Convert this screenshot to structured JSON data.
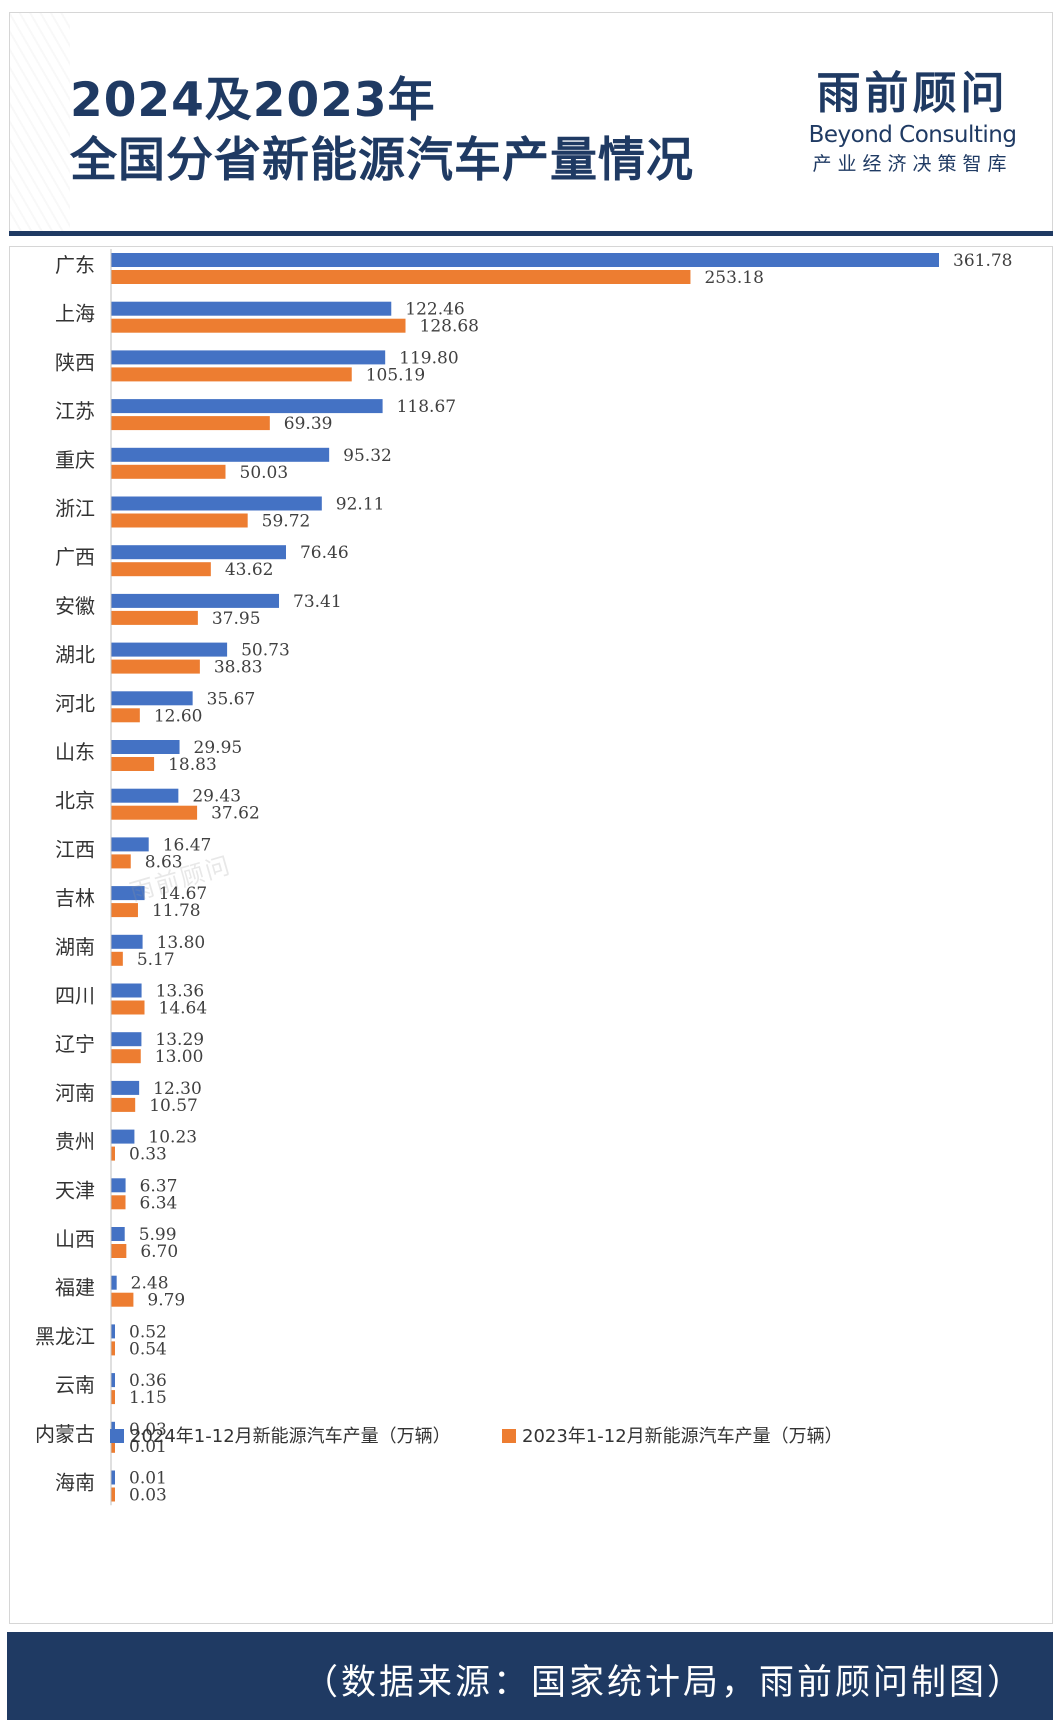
{
  "header": {
    "title_line1": "2024及2023年",
    "title_line2": "全国分省新能源汽车产量情况",
    "logo_cn": "雨前顾问",
    "logo_en": "Beyond Consulting",
    "logo_tagline": "产业经济决策智库"
  },
  "watermark": "雨前顾问",
  "footer": {
    "source": "（数据来源：国家统计局，雨前顾问制图）"
  },
  "colors": {
    "series_2024": "#4472c4",
    "series_2023": "#ed7d31",
    "navy": "#1f3a63"
  },
  "chart_data": {
    "type": "bar",
    "orientation": "horizontal",
    "title": "",
    "xlabel": "",
    "ylabel": "",
    "xlim": [
      0,
      361.78
    ],
    "grid": false,
    "legend_position": "bottom",
    "categories": [
      "广东",
      "上海",
      "陕西",
      "江苏",
      "重庆",
      "浙江",
      "广西",
      "安徽",
      "湖北",
      "河北",
      "山东",
      "北京",
      "江西",
      "吉林",
      "湖南",
      "四川",
      "辽宁",
      "河南",
      "贵州",
      "天津",
      "山西",
      "福建",
      "黑龙江",
      "云南",
      "内蒙古",
      "海南"
    ],
    "series": [
      {
        "name": "2024年1-12月新能源汽车产量（万辆）",
        "color": "#4472c4",
        "values": [
          361.78,
          122.46,
          119.8,
          118.67,
          95.32,
          92.11,
          76.46,
          73.41,
          50.73,
          35.67,
          29.95,
          29.43,
          16.47,
          14.67,
          13.8,
          13.36,
          13.29,
          12.3,
          10.23,
          6.37,
          5.99,
          2.48,
          0.52,
          0.36,
          0.03,
          0.01
        ],
        "labels": [
          "361.78",
          "122.46",
          "119.80",
          "118.67",
          "95.32",
          "92.11",
          "76.46",
          "73.41",
          "50.73",
          "35.67",
          "29.95",
          "29.43",
          "16.47",
          "14.67",
          "13.80",
          "13.36",
          "13.29",
          "12.30",
          "10.23",
          "6.37",
          "5.99",
          "2.48",
          "0.52",
          "0.36",
          "0.03",
          "0.01"
        ]
      },
      {
        "name": "2023年1-12月新能源汽车产量（万辆）",
        "color": "#ed7d31",
        "values": [
          253.18,
          128.68,
          105.19,
          69.39,
          50.03,
          59.72,
          43.62,
          37.95,
          38.83,
          12.6,
          18.83,
          37.62,
          8.63,
          11.78,
          5.17,
          14.64,
          13.0,
          10.57,
          0.33,
          6.34,
          6.7,
          9.79,
          0.54,
          1.15,
          0.01,
          0.03
        ],
        "labels": [
          "253.18",
          "128.68",
          "105.19",
          "69.39",
          "50.03",
          "59.72",
          "43.62",
          "37.95",
          "38.83",
          "12.60",
          "18.83",
          "37.62",
          "8.63",
          "11.78",
          "5.17",
          "14.64",
          "13.00",
          "10.57",
          "0.33",
          "6.34",
          "6.70",
          "9.79",
          "0.54",
          "1.15",
          "0.01",
          "0.03"
        ]
      }
    ]
  }
}
